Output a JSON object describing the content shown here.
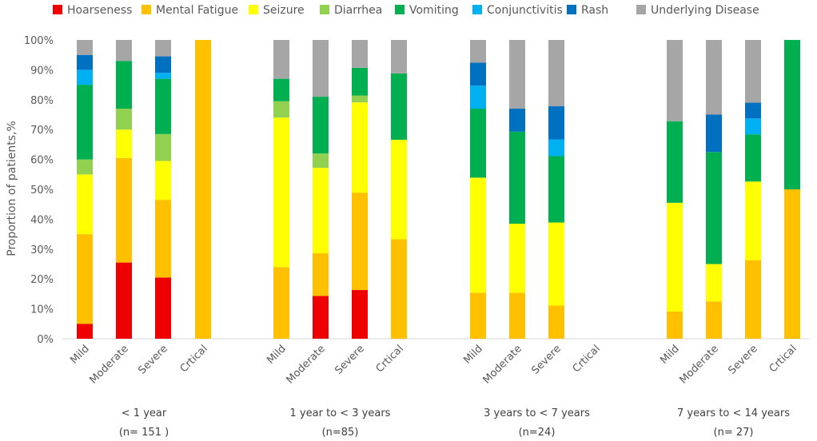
{
  "chart_data": {
    "type": "bar",
    "stacked": true,
    "title": "",
    "ylabel": "Proportion of patients,%",
    "ylim": [
      0,
      100
    ],
    "yticks": [
      "0%",
      "10%",
      "20%",
      "30%",
      "40%",
      "50%",
      "60%",
      "70%",
      "80%",
      "90%",
      "100%"
    ],
    "legend_position": "top",
    "series": [
      {
        "name": "Hoarseness",
        "color": "#ee0000"
      },
      {
        "name": "Mental Fatigue",
        "color": "#ffc000"
      },
      {
        "name": "Seizure",
        "color": "#ffff00"
      },
      {
        "name": "Diarrhea",
        "color": "#92d050"
      },
      {
        "name": "Vomiting",
        "color": "#00b050"
      },
      {
        "name": "Conjunctivitis",
        "color": "#00b0f0"
      },
      {
        "name": "Rash",
        "color": "#0070c0"
      },
      {
        "name": "Underlying Disease",
        "color": "#a6a6a6"
      }
    ],
    "groups": [
      {
        "label": "< 1 year",
        "n_label": "(n= 151 )",
        "bars": [
          {
            "category": "Mild",
            "values": [
              5,
              30,
              20,
              5,
              25,
              5,
              5,
              5
            ]
          },
          {
            "category": "Moderate",
            "values": [
              25.5,
              35,
              9.5,
              7,
              16,
              0,
              0,
              7
            ]
          },
          {
            "category": "Severe",
            "values": [
              20.5,
              26,
              13,
              9,
              18.5,
              2,
              5.5,
              5.5
            ]
          },
          {
            "category": "Crtical",
            "values": [
              0,
              100,
              0,
              0,
              0,
              0,
              0,
              0
            ]
          }
        ]
      },
      {
        "label": "1 year to  < 3 years",
        "n_label": "(n=85)",
        "bars": [
          {
            "category": "Mild",
            "values": [
              0,
              24,
              50,
              5.5,
              7.5,
              0,
              0,
              13
            ]
          },
          {
            "category": "Moderate",
            "values": [
              14.3,
              14.3,
              28.6,
              4.8,
              19,
              0,
              0,
              19
            ]
          },
          {
            "category": "Severe",
            "values": [
              16.3,
              32.6,
              30.2,
              2.3,
              9.3,
              0,
              0,
              9.3
            ]
          },
          {
            "category": "Crtical",
            "values": [
              0,
              33.3,
              33.3,
              0,
              22.2,
              0,
              0,
              11.2
            ]
          }
        ]
      },
      {
        "label": "3 years to  < 7 years",
        "n_label": "(n=24)",
        "bars": [
          {
            "category": "Mild",
            "values": [
              0,
              15.4,
              38.5,
              0,
              23.1,
              7.7,
              7.7,
              7.6
            ]
          },
          {
            "category": "Moderate",
            "values": [
              0,
              15.4,
              23.1,
              0,
              30.8,
              0,
              7.7,
              23
            ]
          },
          {
            "category": "Severe",
            "values": [
              0,
              11.1,
              27.8,
              0,
              22.2,
              5.6,
              11.1,
              22.2
            ]
          },
          {
            "category": "Crtical",
            "values": [
              0,
              0,
              0,
              0,
              0,
              0,
              0,
              0
            ]
          }
        ]
      },
      {
        "label": "7 years to  < 14 years",
        "n_label": "(n= 27)",
        "bars": [
          {
            "category": "Mild",
            "values": [
              0,
              9.1,
              36.4,
              0,
              27.3,
              0,
              0,
              27.2
            ]
          },
          {
            "category": "Moderate",
            "values": [
              0,
              12.5,
              12.5,
              0,
              37.5,
              0,
              12.5,
              25
            ]
          },
          {
            "category": "Severe",
            "values": [
              0,
              26.3,
              26.3,
              0,
              15.8,
              5.3,
              5.3,
              21
            ]
          },
          {
            "category": "Crtical",
            "values": [
              0,
              50,
              0,
              0,
              50,
              0,
              0,
              0
            ]
          }
        ]
      }
    ]
  }
}
